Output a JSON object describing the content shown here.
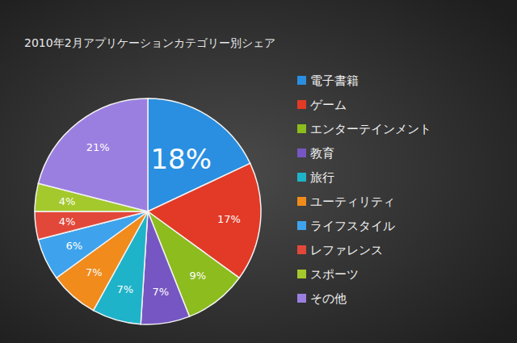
{
  "chart_data": {
    "type": "pie",
    "title": "2010年2月アプリケーションカテゴリー別シェア",
    "categories": [
      "電子書籍",
      "ゲーム",
      "エンターテインメント",
      "教育",
      "旅行",
      "ユーティリティ",
      "ライフスタイル",
      "レファレンス",
      "スポーツ",
      "その他"
    ],
    "values": [
      18,
      17,
      9,
      7,
      7,
      7,
      6,
      4,
      4,
      21
    ],
    "value_labels": [
      "18%",
      "17%",
      "9%",
      "7%",
      "7%",
      "7%",
      "6%",
      "4%",
      "4%",
      "21%"
    ],
    "colors": [
      "#2a8fe0",
      "#e23a26",
      "#8cbc1e",
      "#7656c2",
      "#1fb3c9",
      "#f08b1c",
      "#3ea3ec",
      "#e2483a",
      "#a4c92c",
      "#9b7fe0"
    ],
    "data_labels": true,
    "legend": "right"
  }
}
